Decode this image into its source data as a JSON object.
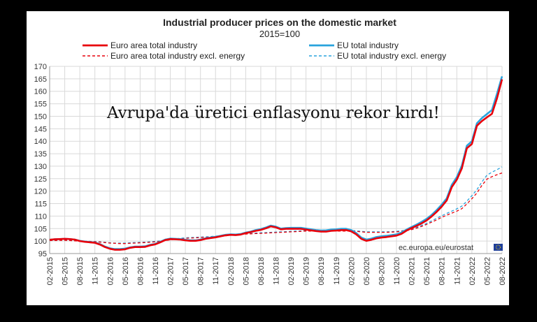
{
  "overlay_caption": "Avrupa'da üretici enflasyonu rekor kırdı!",
  "chart_data": {
    "type": "line",
    "title": "Industrial producer prices on the domestic market",
    "subtitle": "2015=100",
    "source": "ec.europa.eu/eurostat",
    "ylim": [
      95,
      170
    ],
    "yticks": [
      95,
      100,
      105,
      110,
      115,
      120,
      125,
      130,
      135,
      140,
      145,
      150,
      155,
      160,
      165,
      170
    ],
    "grid": true,
    "legend_position": "top",
    "x": [
      "02-2015",
      "03-2015",
      "04-2015",
      "05-2015",
      "06-2015",
      "07-2015",
      "08-2015",
      "09-2015",
      "10-2015",
      "11-2015",
      "12-2015",
      "01-2016",
      "02-2016",
      "03-2016",
      "04-2016",
      "05-2016",
      "06-2016",
      "07-2016",
      "08-2016",
      "09-2016",
      "10-2016",
      "11-2016",
      "12-2016",
      "01-2017",
      "02-2017",
      "03-2017",
      "04-2017",
      "05-2017",
      "06-2017",
      "07-2017",
      "08-2017",
      "09-2017",
      "10-2017",
      "11-2017",
      "12-2017",
      "01-2018",
      "02-2018",
      "03-2018",
      "04-2018",
      "05-2018",
      "06-2018",
      "07-2018",
      "08-2018",
      "09-2018",
      "10-2018",
      "11-2018",
      "12-2018",
      "01-2019",
      "02-2019",
      "03-2019",
      "04-2019",
      "05-2019",
      "06-2019",
      "07-2019",
      "08-2019",
      "09-2019",
      "10-2019",
      "11-2019",
      "12-2019",
      "01-2020",
      "02-2020",
      "03-2020",
      "04-2020",
      "05-2020",
      "06-2020",
      "07-2020",
      "08-2020",
      "09-2020",
      "10-2020",
      "11-2020",
      "12-2020",
      "01-2021",
      "02-2021",
      "03-2021",
      "04-2021",
      "05-2021",
      "06-2021",
      "07-2021",
      "08-2021",
      "09-2021",
      "10-2021",
      "11-2021",
      "12-2021",
      "01-2022",
      "02-2022",
      "03-2022",
      "04-2022",
      "05-2022",
      "06-2022",
      "07-2022",
      "08-2022"
    ],
    "xtick_labels": [
      "02-2015",
      "05-2015",
      "08-2015",
      "11-2015",
      "02-2016",
      "05-2016",
      "08-2016",
      "11-2016",
      "02-2017",
      "05-2017",
      "08-2017",
      "11-2017",
      "02-2018",
      "05-2018",
      "08-2018",
      "11-2018",
      "02-2019",
      "05-2019",
      "08-2019",
      "11-2019",
      "02-2020",
      "05-2020",
      "08-2020",
      "11-2020",
      "02-2021",
      "05-2021",
      "08-2021",
      "11-2021",
      "02-2022",
      "05-2022",
      "08-2022"
    ],
    "series": [
      {
        "name": "Euro area total industry",
        "color": "#e8000b",
        "dash": "solid",
        "values": [
          100.5,
          100.7,
          100.8,
          100.9,
          100.8,
          100.6,
          100.0,
          99.7,
          99.5,
          99.3,
          98.6,
          97.6,
          96.9,
          96.5,
          96.5,
          96.7,
          97.3,
          97.6,
          97.6,
          97.7,
          98.3,
          98.7,
          99.5,
          100.4,
          100.8,
          100.7,
          100.6,
          100.3,
          100.1,
          100.1,
          100.4,
          100.9,
          101.2,
          101.5,
          101.9,
          102.3,
          102.5,
          102.4,
          102.6,
          103.2,
          103.6,
          104.1,
          104.5,
          105.1,
          105.9,
          105.5,
          104.7,
          104.9,
          104.9,
          104.9,
          104.9,
          104.6,
          104.3,
          104.0,
          103.8,
          103.8,
          104.1,
          104.2,
          104.4,
          104.4,
          103.9,
          102.7,
          100.9,
          100.1,
          100.5,
          101.1,
          101.4,
          101.6,
          101.9,
          102.2,
          102.9,
          104.2,
          105.2,
          106.1,
          107.1,
          108.3,
          109.9,
          111.7,
          113.8,
          116.3,
          121.6,
          124.6,
          129.1,
          137.2,
          138.9,
          146.2,
          148.1,
          149.6,
          151.0,
          157.2,
          164.8
        ]
      },
      {
        "name": "EU total industry",
        "color": "#29a3dd",
        "dash": "solid",
        "values": [
          100.5,
          100.7,
          100.8,
          100.9,
          100.8,
          100.6,
          100.1,
          99.8,
          99.6,
          99.4,
          98.8,
          97.8,
          97.1,
          96.8,
          96.8,
          97.0,
          97.5,
          97.8,
          97.8,
          97.9,
          98.5,
          98.9,
          99.7,
          100.6,
          101.0,
          100.9,
          100.8,
          100.5,
          100.3,
          100.3,
          100.6,
          101.1,
          101.4,
          101.7,
          102.1,
          102.5,
          102.7,
          102.6,
          102.8,
          103.4,
          103.8,
          104.4,
          104.8,
          105.4,
          106.2,
          105.8,
          105.0,
          105.2,
          105.3,
          105.3,
          105.3,
          105.0,
          104.7,
          104.4,
          104.2,
          104.3,
          104.6,
          104.7,
          104.9,
          104.9,
          104.4,
          103.2,
          101.4,
          100.6,
          101.0,
          101.6,
          101.9,
          102.1,
          102.4,
          102.7,
          103.4,
          104.6,
          105.6,
          106.6,
          107.7,
          108.9,
          110.5,
          112.4,
          114.6,
          117.1,
          122.5,
          125.6,
          130.2,
          138.2,
          140.0,
          147.2,
          149.3,
          150.9,
          152.5,
          159.0,
          166.0
        ]
      },
      {
        "name": "Euro area total industry excl. energy",
        "color": "#e8000b",
        "dash": "dashed",
        "values": [
          100.2,
          100.2,
          100.3,
          100.3,
          100.2,
          100.1,
          100.0,
          99.9,
          99.8,
          99.7,
          99.6,
          99.4,
          99.2,
          99.1,
          99.0,
          99.0,
          99.1,
          99.2,
          99.3,
          99.4,
          99.5,
          99.7,
          99.9,
          100.2,
          100.5,
          100.7,
          100.9,
          101.1,
          101.2,
          101.3,
          101.4,
          101.5,
          101.6,
          101.8,
          101.9,
          102.1,
          102.3,
          102.5,
          102.6,
          102.8,
          102.9,
          103.0,
          103.1,
          103.2,
          103.3,
          103.4,
          103.5,
          103.6,
          103.7,
          103.8,
          103.9,
          104.0,
          104.0,
          104.0,
          104.0,
          104.0,
          104.0,
          104.0,
          104.0,
          104.0,
          104.0,
          103.9,
          103.7,
          103.5,
          103.5,
          103.5,
          103.5,
          103.5,
          103.6,
          103.7,
          103.9,
          104.2,
          104.6,
          105.2,
          105.9,
          106.7,
          107.6,
          108.5,
          109.5,
          110.4,
          111.2,
          112.0,
          113.0,
          114.9,
          117.0,
          119.3,
          122.3,
          124.8,
          125.8,
          126.6,
          127.3
        ]
      },
      {
        "name": "EU total industry excl. energy",
        "color": "#29a3dd",
        "dash": "dashed",
        "values": [
          100.3,
          100.3,
          100.4,
          100.4,
          100.3,
          100.2,
          100.1,
          100.0,
          99.9,
          99.8,
          99.7,
          99.5,
          99.3,
          99.2,
          99.2,
          99.2,
          99.3,
          99.4,
          99.5,
          99.6,
          99.7,
          99.9,
          100.1,
          100.4,
          100.7,
          100.9,
          101.1,
          101.3,
          101.4,
          101.5,
          101.6,
          101.7,
          101.8,
          102.0,
          102.1,
          102.3,
          102.5,
          102.7,
          102.8,
          103.0,
          103.1,
          103.2,
          103.3,
          103.4,
          103.5,
          103.6,
          103.7,
          103.8,
          103.9,
          104.0,
          104.1,
          104.2,
          104.2,
          104.2,
          104.2,
          104.2,
          104.2,
          104.2,
          104.2,
          104.2,
          104.2,
          104.1,
          103.9,
          103.7,
          103.7,
          103.7,
          103.7,
          103.7,
          103.8,
          103.9,
          104.1,
          104.4,
          104.9,
          105.5,
          106.3,
          107.1,
          108.1,
          109.1,
          110.1,
          111.1,
          112.0,
          112.9,
          114.0,
          116.0,
          118.2,
          120.6,
          123.7,
          126.4,
          127.6,
          128.6,
          129.7
        ]
      }
    ]
  }
}
